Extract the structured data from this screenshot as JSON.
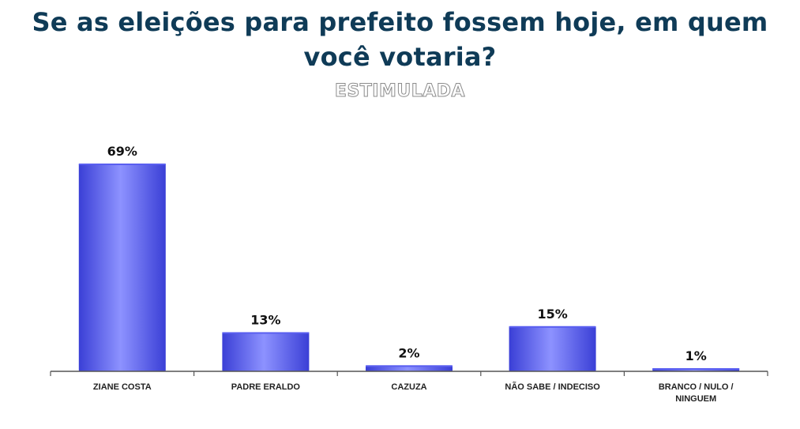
{
  "header": {
    "title": "Se as eleições para prefeito fossem hoje,  em quem você votaria?",
    "subtitle": "ESTIMULADA"
  },
  "colors": {
    "title": "#0f3b57",
    "bar_dark": "#3a3fd6",
    "bar_light": "#8d92ff",
    "axis": "#555555"
  },
  "chart_data": {
    "type": "bar",
    "title": "Se as eleições para prefeito fossem hoje,  em quem você votaria?",
    "subtitle": "ESTIMULADA",
    "categories": [
      "ZIANE COSTA",
      "PADRE ERALDO",
      "CAZUZA",
      "NÃO SABE / INDECISO",
      "BRANCO / NULO / NINGUEM"
    ],
    "values": [
      69,
      13,
      2,
      15,
      1
    ],
    "value_labels": [
      "69%",
      "13%",
      "2%",
      "15%",
      "1%"
    ],
    "unit": "%",
    "ylim": [
      0,
      69
    ],
    "grid": false,
    "legend": "none"
  }
}
